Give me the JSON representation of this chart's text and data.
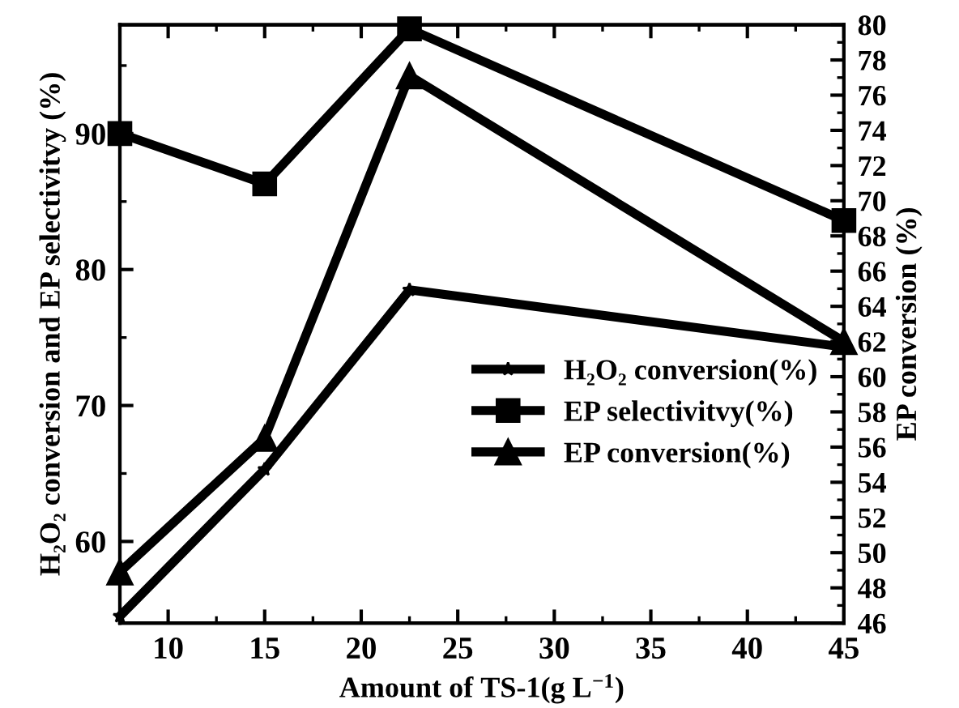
{
  "chart_data": {
    "type": "line",
    "xlabel": "Amount of TS-1(g L$^{−1}$)",
    "ylabel": "H₂O₂ conversion and EP selectivitvy (%)",
    "y2label": "EP conversion (%)",
    "x": [
      7.5,
      15,
      22.5,
      45
    ],
    "series": [
      {
        "name": "H₂O₂ conversion(%)",
        "color": "#000000",
        "marker": "star",
        "values": [
          54.5,
          65.3,
          78.5,
          74.3
        ]
      },
      {
        "name": "EP selectivitvy(%)",
        "color": "#000000",
        "marker": "square",
        "values": [
          90.0,
          86.3,
          97.7,
          83.6
        ]
      },
      {
        "name": "EP conversion(%)",
        "color": "#000000",
        "marker": "triangle",
        "axis": "y2",
        "values": [
          48.9,
          56.5,
          77.1,
          62.0
        ]
      }
    ],
    "xlim": [
      7.5,
      45
    ],
    "xticks": [
      {
        "value": 7.5,
        "label": null
      },
      10,
      {
        "value": 12.5,
        "label": null
      },
      15,
      {
        "value": 17.5,
        "label": null
      },
      20,
      {
        "value": 22.5,
        "label": null
      },
      25,
      {
        "value": 27.5,
        "label": null
      },
      30,
      {
        "value": 32.5,
        "label": null
      },
      35,
      {
        "value": 37.5,
        "label": null
      },
      40,
      {
        "value": 42.5,
        "label": null
      },
      45
    ],
    "ylim": [
      54,
      98
    ],
    "yticks": [
      {
        "value": 55,
        "label": null
      },
      60,
      {
        "value": 65,
        "label": null
      },
      70,
      {
        "value": 75,
        "label": null
      },
      80,
      {
        "value": 85,
        "label": null
      },
      90,
      {
        "value": 95,
        "label": null
      }
    ],
    "y2lim": [
      46,
      80
    ],
    "y2ticks": [
      46,
      {
        "value": 47,
        "label": null
      },
      48,
      {
        "value": 49,
        "label": null
      },
      50,
      {
        "value": 51,
        "label": null
      },
      52,
      {
        "value": 53,
        "label": null
      },
      54,
      {
        "value": 55,
        "label": null
      },
      56,
      {
        "value": 57,
        "label": null
      },
      58,
      {
        "value": 59,
        "label": null
      },
      60,
      {
        "value": 61,
        "label": null
      },
      62,
      {
        "value": 63,
        "label": null
      },
      64,
      {
        "value": 65,
        "label": null
      },
      66,
      {
        "value": 67,
        "label": null
      },
      68,
      {
        "value": 69,
        "label": null
      },
      70,
      {
        "value": 71,
        "label": null
      },
      72,
      {
        "value": 73,
        "label": null
      },
      74,
      {
        "value": 75,
        "label": null
      },
      76,
      {
        "value": 77,
        "label": null
      },
      78,
      {
        "value": 79,
        "label": null
      },
      80
    ],
    "grid": false,
    "legend": "right",
    "line_style": "solid"
  }
}
